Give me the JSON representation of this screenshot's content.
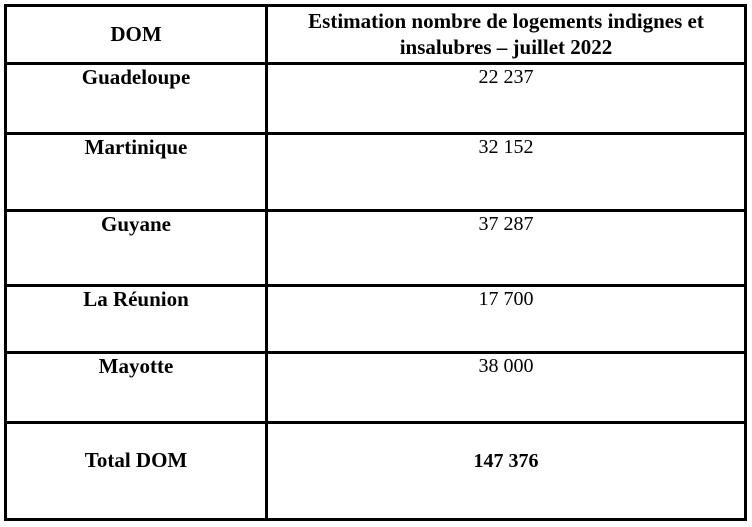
{
  "table": {
    "header": {
      "col1": "DOM",
      "col2": "Estimation nombre de logements indignes et insalubres – juillet 2022"
    },
    "rows": [
      {
        "dom": "Guadeloupe",
        "value": "22 237"
      },
      {
        "dom": "Martinique",
        "value": "32 152"
      },
      {
        "dom": "Guyane",
        "value": "37 287"
      },
      {
        "dom": "La Réunion",
        "value": "17 700"
      },
      {
        "dom": "Mayotte",
        "value": "38 000"
      },
      {
        "dom": "Total DOM",
        "value": "147 376"
      }
    ],
    "colors": {
      "border": "#000000",
      "background": "#ffffff",
      "text": "#000000"
    }
  }
}
